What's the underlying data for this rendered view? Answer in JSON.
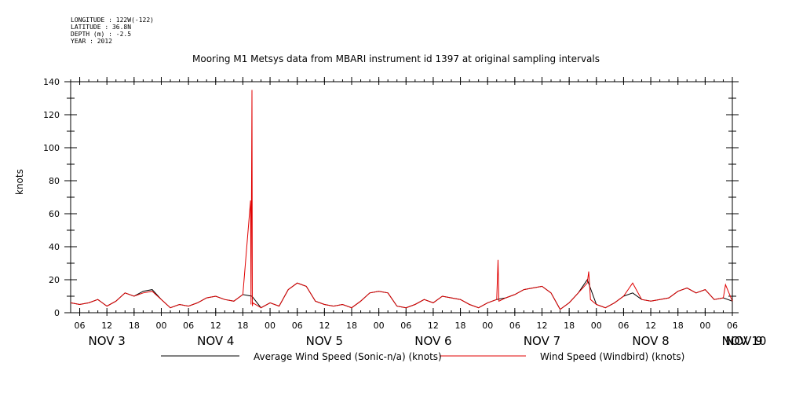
{
  "header": {
    "longitude": "LONGITUDE : 122W(-122)",
    "latitude": "LATITUDE : 36.8N",
    "depth": "DEPTH (m) : -2.5",
    "year": "YEAR : 2012"
  },
  "chart_data": {
    "type": "line",
    "title": "Mooring M1 Metsys data from MBARI instrument id 1397 at original sampling intervals",
    "ylabel": "knots",
    "xlabel": "",
    "ylim": [
      0,
      140
    ],
    "y_ticks": [
      0,
      20,
      40,
      60,
      80,
      100,
      120,
      140
    ],
    "x_range_hours": [
      52,
      198
    ],
    "hour_ticks": [
      {
        "h": 54,
        "label": "06"
      },
      {
        "h": 60,
        "label": "12"
      },
      {
        "h": 66,
        "label": "18"
      },
      {
        "h": 72,
        "label": "00"
      },
      {
        "h": 78,
        "label": "06"
      },
      {
        "h": 84,
        "label": "12"
      },
      {
        "h": 90,
        "label": "18"
      },
      {
        "h": 96,
        "label": "00"
      },
      {
        "h": 102,
        "label": "06"
      },
      {
        "h": 108,
        "label": "12"
      },
      {
        "h": 114,
        "label": "18"
      },
      {
        "h": 120,
        "label": "00"
      },
      {
        "h": 126,
        "label": "06"
      },
      {
        "h": 132,
        "label": "12"
      },
      {
        "h": 138,
        "label": "18"
      },
      {
        "h": 144,
        "label": "00"
      },
      {
        "h": 150,
        "label": "06"
      },
      {
        "h": 156,
        "label": "12"
      },
      {
        "h": 162,
        "label": "18"
      },
      {
        "h": 168,
        "label": "00"
      },
      {
        "h": 174,
        "label": "06"
      },
      {
        "h": 180,
        "label": "12"
      },
      {
        "h": 186,
        "label": "18"
      },
      {
        "h": 192,
        "label": "00"
      },
      {
        "h": 198,
        "label": "06"
      }
    ],
    "day_labels": [
      {
        "h": 60,
        "label": "NOV  3"
      },
      {
        "h": 84,
        "label": "NOV  4"
      },
      {
        "h": 108,
        "label": "NOV  5"
      },
      {
        "h": 132,
        "label": "NOV  6"
      },
      {
        "h": 156,
        "label": "NOV  7"
      },
      {
        "h": 180,
        "label": "NOV  8"
      },
      {
        "h": 204,
        "label": "NOV  9"
      },
      {
        "h": 219,
        "label": "NOV 10"
      }
    ],
    "grid": false,
    "legend_placement": "bottom",
    "series": [
      {
        "name": "Average Wind Speed (Sonic-n/a) (knots)",
        "color": "#000000",
        "x_hours": [
          52,
          54,
          56,
          58,
          60,
          62,
          64,
          66,
          68,
          70,
          72,
          74,
          76,
          78,
          80,
          82,
          84,
          86,
          88,
          90,
          92,
          94,
          96,
          98,
          100,
          102,
          104,
          106,
          108,
          110,
          112,
          114,
          116,
          118,
          120,
          122,
          124,
          126,
          128,
          130,
          132,
          134,
          136,
          138,
          140,
          142,
          144,
          146,
          148,
          150,
          152,
          154,
          156,
          158,
          160,
          162,
          164,
          166,
          168,
          170,
          172,
          174,
          176,
          178,
          180,
          182,
          184,
          186,
          188,
          190,
          192,
          194,
          196,
          198
        ],
        "values": [
          6,
          5,
          6,
          8,
          4,
          7,
          12,
          10,
          13,
          14,
          8,
          3,
          5,
          4,
          6,
          9,
          10,
          8,
          7,
          11,
          10,
          3,
          6,
          4,
          14,
          18,
          16,
          7,
          5,
          4,
          5,
          3,
          7,
          12,
          13,
          12,
          4,
          3,
          5,
          8,
          6,
          10,
          9,
          8,
          5,
          3,
          6,
          8,
          9,
          11,
          14,
          15,
          16,
          12,
          2,
          6,
          12,
          20,
          5,
          3,
          6,
          10,
          12,
          8,
          7,
          8,
          9,
          13,
          15,
          12,
          14,
          8,
          9,
          7
        ]
      },
      {
        "name": "Wind Speed (Windbird) (knots)",
        "color": "#e00000",
        "x_hours": [
          52,
          54,
          56,
          58,
          60,
          62,
          64,
          66,
          68,
          70,
          72,
          74,
          76,
          78,
          80,
          82,
          84,
          86,
          88,
          90,
          91.7,
          91.8,
          92,
          92.1,
          92.2,
          94,
          96,
          98,
          100,
          102,
          104,
          106,
          108,
          110,
          112,
          114,
          116,
          118,
          120,
          122,
          124,
          126,
          128,
          130,
          132,
          134,
          136,
          138,
          140,
          142,
          144,
          146,
          146.3,
          146.5,
          148,
          150,
          152,
          154,
          156,
          158,
          160,
          162,
          164,
          166,
          166.3,
          166.7,
          168,
          170,
          172,
          174,
          176,
          178,
          180,
          182,
          184,
          186,
          188,
          190,
          192,
          194,
          196,
          196.5,
          198
        ],
        "values": [
          6,
          5,
          6,
          8,
          4,
          7,
          12,
          10,
          12,
          13,
          8,
          3,
          5,
          4,
          6,
          9,
          10,
          8,
          7,
          11,
          68,
          5,
          135,
          4,
          6,
          3,
          6,
          4,
          14,
          18,
          16,
          7,
          5,
          4,
          5,
          3,
          7,
          12,
          13,
          12,
          4,
          3,
          5,
          8,
          6,
          10,
          9,
          8,
          5,
          3,
          6,
          8,
          32,
          7,
          9,
          11,
          14,
          15,
          16,
          12,
          2,
          6,
          12,
          18,
          25,
          8,
          5,
          3,
          6,
          10,
          18,
          8,
          7,
          8,
          9,
          13,
          15,
          12,
          14,
          8,
          9,
          17,
          7
        ]
      }
    ]
  }
}
